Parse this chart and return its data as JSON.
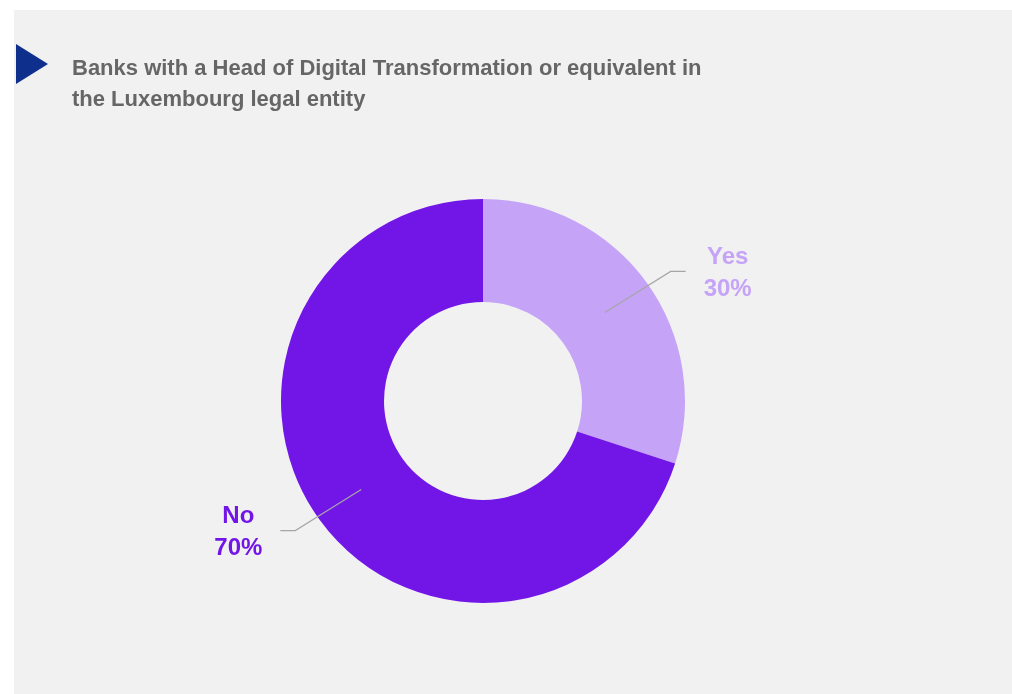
{
  "chart_data": {
    "type": "donut",
    "title": "Banks with a Head of Digital Transformation or equivalent in the Luxembourg legal entity",
    "categories": [
      "Yes",
      "No"
    ],
    "values": [
      30,
      70
    ],
    "value_labels": [
      "30%",
      "70%"
    ],
    "colors": [
      "#c5a3f7",
      "#7216e8"
    ],
    "legend": false
  }
}
